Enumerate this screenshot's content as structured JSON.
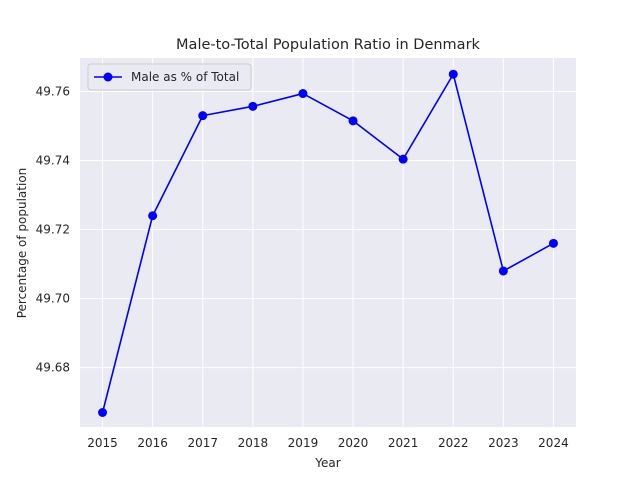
{
  "chart_data": {
    "type": "line",
    "title": "Male-to-Total Population Ratio in Denmark",
    "xlabel": "Year",
    "ylabel": "Percentage of population",
    "x": [
      2015,
      2016,
      2017,
      2018,
      2019,
      2020,
      2021,
      2022,
      2023,
      2024
    ],
    "x_tick_labels": [
      "2015",
      "2016",
      "2017",
      "2018",
      "2019",
      "2020",
      "2021",
      "2022",
      "2023",
      "2024"
    ],
    "y_ticks": [
      49.68,
      49.7,
      49.72,
      49.74,
      49.76
    ],
    "y_tick_labels": [
      "49.68",
      "49.70",
      "49.72",
      "49.74",
      "49.76"
    ],
    "ylim": [
      49.6628,
      49.7697
    ],
    "xlim": [
      2014.55,
      2024.45
    ],
    "grid": true,
    "legend_position": "upper-left",
    "series": [
      {
        "name": "Male as % of Total",
        "color": "#0000ff",
        "marker": "circle",
        "values": [
          49.667,
          49.724,
          49.753,
          49.7557,
          49.7594,
          49.7515,
          49.7404,
          49.765,
          49.708,
          49.716
        ]
      }
    ]
  },
  "colors": {
    "plot_background": "#eaeaf2",
    "grid": "#ffffff",
    "text": "#262626"
  }
}
